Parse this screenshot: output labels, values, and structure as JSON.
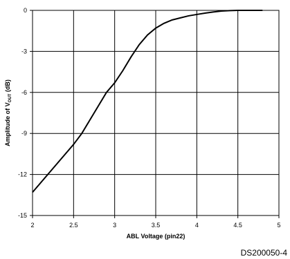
{
  "chart_data": {
    "type": "line",
    "title": "",
    "xlabel": "ABL Voltage (pin22)",
    "ylabel": {
      "prefix": "Amplitude of V",
      "subscript": "OUT",
      "suffix": " (dB)"
    },
    "xlim": [
      2,
      5
    ],
    "ylim": [
      -15,
      0
    ],
    "x_ticks": [
      "2",
      "2.5",
      "3",
      "3.5",
      "4",
      "4.5",
      "5"
    ],
    "y_ticks": [
      "0",
      "-3",
      "-6",
      "-9",
      "-12",
      "-15"
    ],
    "grid": true,
    "series": [
      {
        "x": [
          2.0,
          2.1,
          2.2,
          2.3,
          2.4,
          2.5,
          2.6,
          2.7,
          2.8,
          2.9,
          3.0,
          3.1,
          3.2,
          3.3,
          3.4,
          3.5,
          3.6,
          3.7,
          3.8,
          3.9,
          4.0,
          4.1,
          4.2,
          4.3,
          4.4,
          4.5,
          4.6,
          4.7,
          4.8
        ],
        "y": [
          -13.3,
          -12.6,
          -11.9,
          -11.2,
          -10.5,
          -9.8,
          -9.0,
          -8.0,
          -7.0,
          -6.0,
          -5.3,
          -4.4,
          -3.4,
          -2.5,
          -1.8,
          -1.3,
          -0.95,
          -0.7,
          -0.55,
          -0.4,
          -0.3,
          -0.2,
          -0.12,
          -0.05,
          -0.02,
          0,
          0,
          0,
          0
        ]
      }
    ]
  },
  "figure_id": "DS200050-4"
}
